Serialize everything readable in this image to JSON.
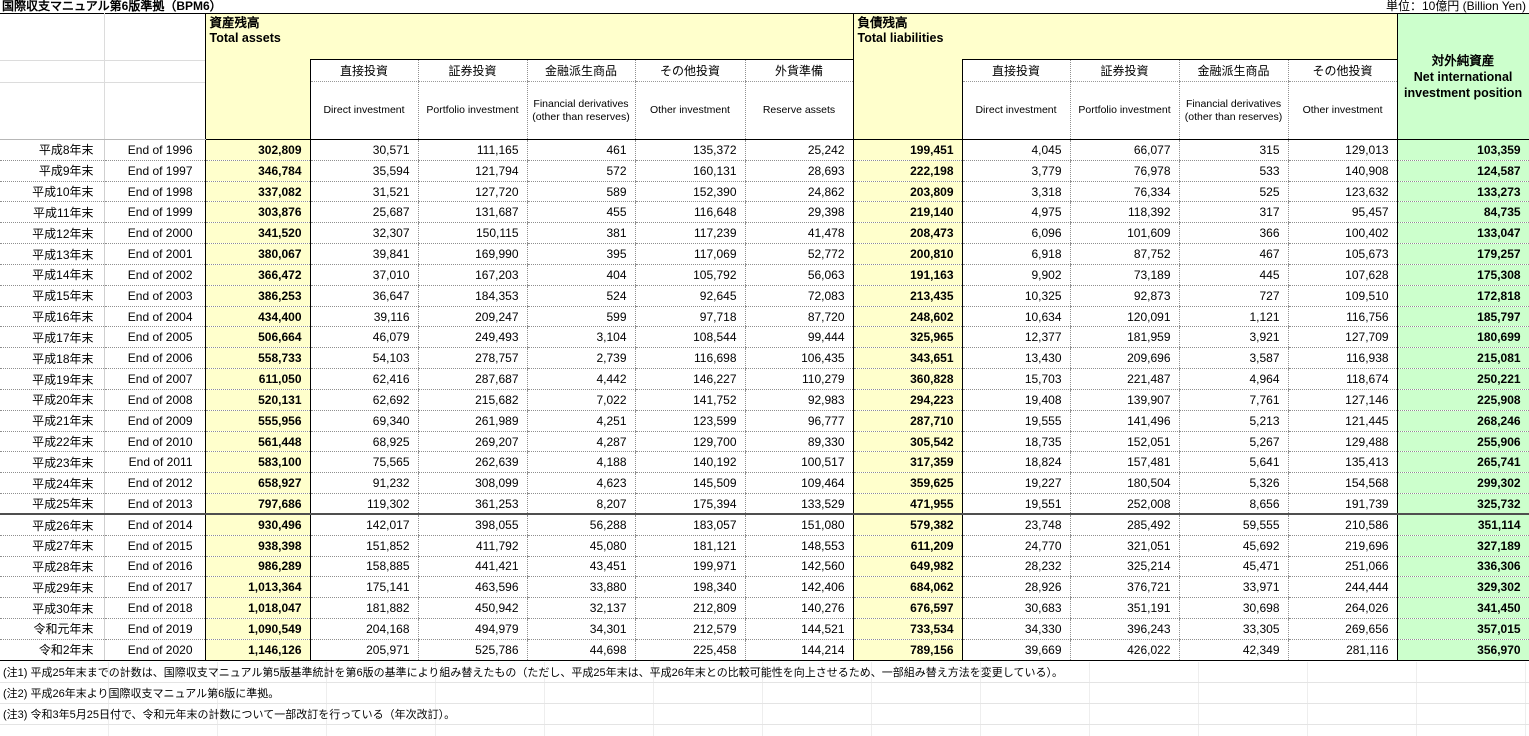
{
  "title": "国際収支マニュアル第6版準拠（BPM6）",
  "unit_label": "単位：10億円 (Billion Yen)",
  "colors": {
    "header_fill_yellow": "#FFFFCC",
    "net_fill_green": "#CCFFCC"
  },
  "header": {
    "assets": {
      "jp": "資産残高",
      "en": "Total assets"
    },
    "liabilities": {
      "jp": "負債残高",
      "en": "Total liabilities"
    },
    "net": {
      "jp": "対外純資産",
      "en": "Net international investment position"
    },
    "subcolumns": {
      "direct": {
        "jp": "直接投資",
        "en": "Direct investment"
      },
      "portfolio": {
        "jp": "証券投資",
        "en": "Portfolio investment"
      },
      "derivatives": {
        "jp": "金融派生商品",
        "en": "Financial derivatives (other than reserves)"
      },
      "other": {
        "jp": "その他投資",
        "en": "Other investment"
      },
      "reserve": {
        "jp": "外貨準備",
        "en": "Reserve assets"
      }
    }
  },
  "notes": [
    "(注1) 平成25年末までの計数は、国際収支マニュアル第5版基準統計を第6版の基準により組み替えたもの（ただし、平成25年末は、平成26年末との比較可能性を向上させるため、一部組み替え方法を変更している）。",
    "(注2) 平成26年末より国際収支マニュアル第6版に準拠。",
    "(注3) 令和3年5月25日付で、令和元年末の計数について一部改訂を行っている（年次改訂）。"
  ],
  "chart_data": {
    "type": "table",
    "title": "国際収支マニュアル第6版準拠（BPM6）",
    "unit": "10億円 (Billion Yen)",
    "thick_separator_after_year": "End of 2013",
    "columns": [
      "era",
      "year",
      "total_assets",
      "assets_direct_investment",
      "assets_portfolio_investment",
      "assets_financial_derivatives",
      "assets_other_investment",
      "reserve_assets",
      "total_liabilities",
      "liabilities_direct_investment",
      "liabilities_portfolio_investment",
      "liabilities_financial_derivatives",
      "liabilities_other_investment",
      "net_international_investment_position"
    ],
    "rows": [
      [
        "平成8年末",
        "End of 1996",
        302809,
        30571,
        111165,
        461,
        135372,
        25242,
        199451,
        4045,
        66077,
        315,
        129013,
        103359
      ],
      [
        "平成9年末",
        "End of 1997",
        346784,
        35594,
        121794,
        572,
        160131,
        28693,
        222198,
        3779,
        76978,
        533,
        140908,
        124587
      ],
      [
        "平成10年末",
        "End of 1998",
        337082,
        31521,
        127720,
        589,
        152390,
        24862,
        203809,
        3318,
        76334,
        525,
        123632,
        133273
      ],
      [
        "平成11年末",
        "End of 1999",
        303876,
        25687,
        131687,
        455,
        116648,
        29398,
        219140,
        4975,
        118392,
        317,
        95457,
        84735
      ],
      [
        "平成12年末",
        "End of 2000",
        341520,
        32307,
        150115,
        381,
        117239,
        41478,
        208473,
        6096,
        101609,
        366,
        100402,
        133047
      ],
      [
        "平成13年末",
        "End of 2001",
        380067,
        39841,
        169990,
        395,
        117069,
        52772,
        200810,
        6918,
        87752,
        467,
        105673,
        179257
      ],
      [
        "平成14年末",
        "End of 2002",
        366472,
        37010,
        167203,
        404,
        105792,
        56063,
        191163,
        9902,
        73189,
        445,
        107628,
        175308
      ],
      [
        "平成15年末",
        "End of 2003",
        386253,
        36647,
        184353,
        524,
        92645,
        72083,
        213435,
        10325,
        92873,
        727,
        109510,
        172818
      ],
      [
        "平成16年末",
        "End of 2004",
        434400,
        39116,
        209247,
        599,
        97718,
        87720,
        248602,
        10634,
        120091,
        1121,
        116756,
        185797
      ],
      [
        "平成17年末",
        "End of 2005",
        506664,
        46079,
        249493,
        3104,
        108544,
        99444,
        325965,
        12377,
        181959,
        3921,
        127709,
        180699
      ],
      [
        "平成18年末",
        "End of 2006",
        558733,
        54103,
        278757,
        2739,
        116698,
        106435,
        343651,
        13430,
        209696,
        3587,
        116938,
        215081
      ],
      [
        "平成19年末",
        "End of 2007",
        611050,
        62416,
        287687,
        4442,
        146227,
        110279,
        360828,
        15703,
        221487,
        4964,
        118674,
        250221
      ],
      [
        "平成20年末",
        "End of 2008",
        520131,
        62692,
        215682,
        7022,
        141752,
        92983,
        294223,
        19408,
        139907,
        7761,
        127146,
        225908
      ],
      [
        "平成21年末",
        "End of 2009",
        555956,
        69340,
        261989,
        4251,
        123599,
        96777,
        287710,
        19555,
        141496,
        5213,
        121445,
        268246
      ],
      [
        "平成22年末",
        "End of 2010",
        561448,
        68925,
        269207,
        4287,
        129700,
        89330,
        305542,
        18735,
        152051,
        5267,
        129488,
        255906
      ],
      [
        "平成23年末",
        "End of 2011",
        583100,
        75565,
        262639,
        4188,
        140192,
        100517,
        317359,
        18824,
        157481,
        5641,
        135413,
        265741
      ],
      [
        "平成24年末",
        "End of 2012",
        658927,
        91232,
        308099,
        4623,
        145509,
        109464,
        359625,
        19227,
        180504,
        5326,
        154568,
        299302
      ],
      [
        "平成25年末",
        "End of 2013",
        797686,
        119302,
        361253,
        8207,
        175394,
        133529,
        471955,
        19551,
        252008,
        8656,
        191739,
        325732
      ],
      [
        "平成26年末",
        "End of 2014",
        930496,
        142017,
        398055,
        56288,
        183057,
        151080,
        579382,
        23748,
        285492,
        59555,
        210586,
        351114
      ],
      [
        "平成27年末",
        "End of 2015",
        938398,
        151852,
        411792,
        45080,
        181121,
        148553,
        611209,
        24770,
        321051,
        45692,
        219696,
        327189
      ],
      [
        "平成28年末",
        "End of 2016",
        986289,
        158885,
        441421,
        43451,
        199971,
        142560,
        649982,
        28232,
        325214,
        45471,
        251066,
        336306
      ],
      [
        "平成29年末",
        "End of 2017",
        1013364,
        175141,
        463596,
        33880,
        198340,
        142406,
        684062,
        28926,
        376721,
        33971,
        244444,
        329302
      ],
      [
        "平成30年末",
        "End of 2018",
        1018047,
        181882,
        450942,
        32137,
        212809,
        140276,
        676597,
        30683,
        351191,
        30698,
        264026,
        341450
      ],
      [
        "令和元年末",
        "End of 2019",
        1090549,
        204168,
        494979,
        34301,
        212579,
        144521,
        733534,
        34330,
        396243,
        33305,
        269656,
        357015
      ],
      [
        "令和2年末",
        "End of 2020",
        1146126,
        205971,
        525786,
        44698,
        225458,
        144214,
        789156,
        39669,
        426022,
        42349,
        281116,
        356970
      ]
    ]
  }
}
